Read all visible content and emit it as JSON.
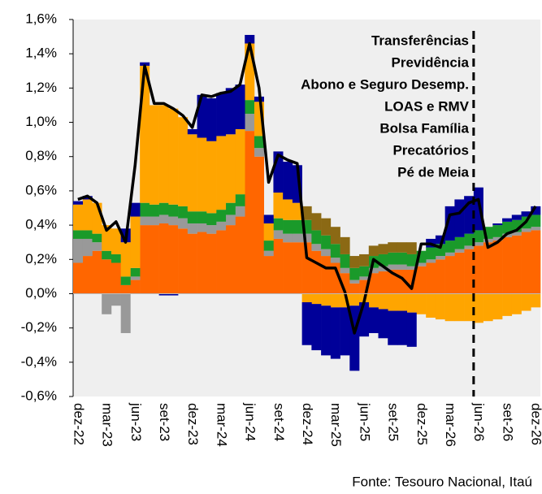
{
  "chart_data": {
    "type": "bar",
    "stacked": true,
    "source": "Fonte: Tesouro Nacional, Itaú",
    "categories": [
      "dez-22",
      null,
      null,
      "mar-23",
      null,
      null,
      "jun-23",
      null,
      null,
      "set-23",
      null,
      null,
      "dez-23",
      null,
      null,
      "mar-24",
      null,
      null,
      "jun-24",
      null,
      null,
      "set-24",
      null,
      null,
      "dez-24",
      null,
      null,
      "mar-25",
      null,
      null,
      "jun-25",
      null,
      null,
      "set-25",
      null,
      null,
      "dez-25",
      null,
      null,
      "mar-26",
      null,
      null,
      "jun-26",
      null,
      null,
      "set-26",
      null,
      null,
      "dez-26"
    ],
    "ylim": [
      -0.6,
      1.6
    ],
    "yticks": [
      {
        "value": -0.6,
        "label": "-0,6%"
      },
      {
        "value": -0.4,
        "label": "-0,4%"
      },
      {
        "value": -0.2,
        "label": "-0,2%"
      },
      {
        "value": 0,
        "label": "0,0%"
      },
      {
        "value": 0.2,
        "label": "0,2%"
      },
      {
        "value": 0.4,
        "label": "0,4%"
      },
      {
        "value": 0.6,
        "label": "0,6%"
      },
      {
        "value": 0.8,
        "label": "0,8%"
      },
      {
        "value": 1.0,
        "label": "1,0%"
      },
      {
        "value": 1.2,
        "label": "1,2%"
      },
      {
        "value": 1.4,
        "label": "1,4%"
      },
      {
        "value": 1.6,
        "label": "1,6%"
      }
    ],
    "series": [
      {
        "name": "Transferências",
        "type": "line",
        "color": "#000000",
        "values": [
          0.55,
          0.57,
          0.53,
          0.37,
          0.42,
          0.3,
          0.75,
          1.33,
          1.11,
          1.11,
          1.08,
          1.04,
          0.97,
          1.16,
          1.15,
          1.17,
          1.18,
          1.22,
          1.46,
          1.2,
          0.65,
          0.81,
          0.78,
          0.76,
          0.21,
          0.18,
          0.15,
          0.15,
          0.01,
          -0.23,
          -0.05,
          0.2,
          0.16,
          0.12,
          0.09,
          0.03,
          0.29,
          0.29,
          0.27,
          0.46,
          0.47,
          0.53,
          0.55,
          0.27,
          0.3,
          0.35,
          0.37,
          0.42,
          0.51
        ]
      },
      {
        "name": "Previdência",
        "color": "#ff6600",
        "values": [
          0.18,
          0.22,
          0.25,
          0.2,
          0.18,
          0.05,
          0.08,
          0.4,
          0.4,
          0.41,
          0.4,
          0.38,
          0.35,
          0.36,
          0.35,
          0.37,
          0.4,
          0.45,
          0.95,
          0.8,
          0.22,
          0.32,
          0.3,
          0.3,
          0.3,
          0.25,
          0.22,
          0.18,
          0.12,
          0.06,
          0.08,
          0.12,
          0.13,
          0.14,
          0.14,
          0.14,
          0.16,
          0.18,
          0.2,
          0.22,
          0.24,
          0.26,
          0.28,
          0.3,
          0.31,
          0.33,
          0.34,
          0.36,
          0.37
        ]
      },
      {
        "name": "Abono e Seguro Desemp.",
        "color": "#999999",
        "values": [
          0.14,
          0.1,
          0.05,
          -0.12,
          -0.07,
          -0.23,
          0.02,
          0.05,
          0.05,
          0.05,
          0.05,
          0.06,
          0.06,
          0.05,
          0.05,
          0.05,
          0.06,
          0.06,
          0.1,
          0.05,
          0.03,
          0.05,
          0.05,
          0.05,
          0.05,
          0.04,
          0.04,
          0.03,
          0.03,
          0.02,
          0.02,
          0.03,
          0.03,
          0.03,
          0.03,
          0.02,
          0.02,
          0.02,
          0.02,
          0.02,
          0.02,
          0.02,
          0.02,
          0.02,
          0.02,
          0.02,
          0.02,
          0.02,
          0.02
        ]
      },
      {
        "name": "LOAS e RMV",
        "color": "#1a9a2a",
        "values": [
          0.05,
          0.05,
          0.05,
          0.05,
          0.05,
          0.05,
          0.05,
          0.08,
          0.07,
          0.07,
          0.07,
          0.07,
          0.07,
          0.07,
          0.07,
          0.07,
          0.07,
          0.07,
          0.08,
          0.07,
          0.06,
          0.07,
          0.08,
          0.08,
          0.08,
          0.08,
          0.08,
          0.08,
          0.08,
          0.07,
          0.06,
          0.07,
          0.07,
          0.07,
          0.07,
          0.07,
          0.07,
          0.07,
          0.07,
          0.07,
          0.07,
          0.07,
          0.07,
          0.07,
          0.07,
          0.07,
          0.07,
          0.07,
          0.07
        ]
      },
      {
        "name": "Bolsa Família",
        "color": "#ffa500",
        "values": [
          0.15,
          0.18,
          0.18,
          0.15,
          0.15,
          0.2,
          0.3,
          0.8,
          0.58,
          0.57,
          0.56,
          0.52,
          0.45,
          0.43,
          0.42,
          0.43,
          0.4,
          0.38,
          0.33,
          0.2,
          0.1,
          0.15,
          0.12,
          0.1,
          -0.05,
          -0.06,
          -0.07,
          -0.08,
          -0.08,
          -0.07,
          -0.05,
          -0.08,
          -0.09,
          -0.1,
          -0.1,
          -0.11,
          -0.12,
          -0.14,
          -0.15,
          -0.16,
          -0.16,
          -0.16,
          -0.17,
          -0.16,
          -0.15,
          -0.13,
          -0.12,
          -0.1,
          -0.08
        ]
      },
      {
        "name": "Precatórios",
        "color": "#000099",
        "values": [
          0.02,
          0.02,
          0,
          0,
          0,
          0.08,
          0.08,
          0.02,
          0,
          -0.01,
          -0.01,
          0,
          0.03,
          0.25,
          0.25,
          0.25,
          0.27,
          0.26,
          0.05,
          0.03,
          0.05,
          0.24,
          0.22,
          0.22,
          -0.25,
          -0.27,
          -0.29,
          -0.3,
          -0.28,
          -0.38,
          -0.2,
          -0.15,
          -0.17,
          -0.2,
          -0.2,
          -0.2,
          0,
          0.05,
          0.05,
          0.2,
          0.22,
          0.22,
          0.25,
          0,
          0.01,
          0.02,
          0.03,
          0.03,
          0.05
        ]
      },
      {
        "name": "Pé de Meia",
        "color": "#8b6914",
        "values": [
          0,
          0,
          0,
          0,
          0,
          0,
          0,
          0,
          0,
          0,
          0,
          0,
          0,
          0,
          0,
          0,
          0,
          0,
          0,
          0,
          0,
          0,
          0,
          0,
          0.08,
          0.1,
          0.1,
          0.1,
          0.1,
          0.07,
          0.07,
          0.06,
          0.06,
          0.06,
          0.06,
          0.07,
          0,
          0,
          0,
          0,
          0,
          0,
          0,
          0,
          0,
          0,
          0,
          0,
          0
        ]
      }
    ]
  }
}
